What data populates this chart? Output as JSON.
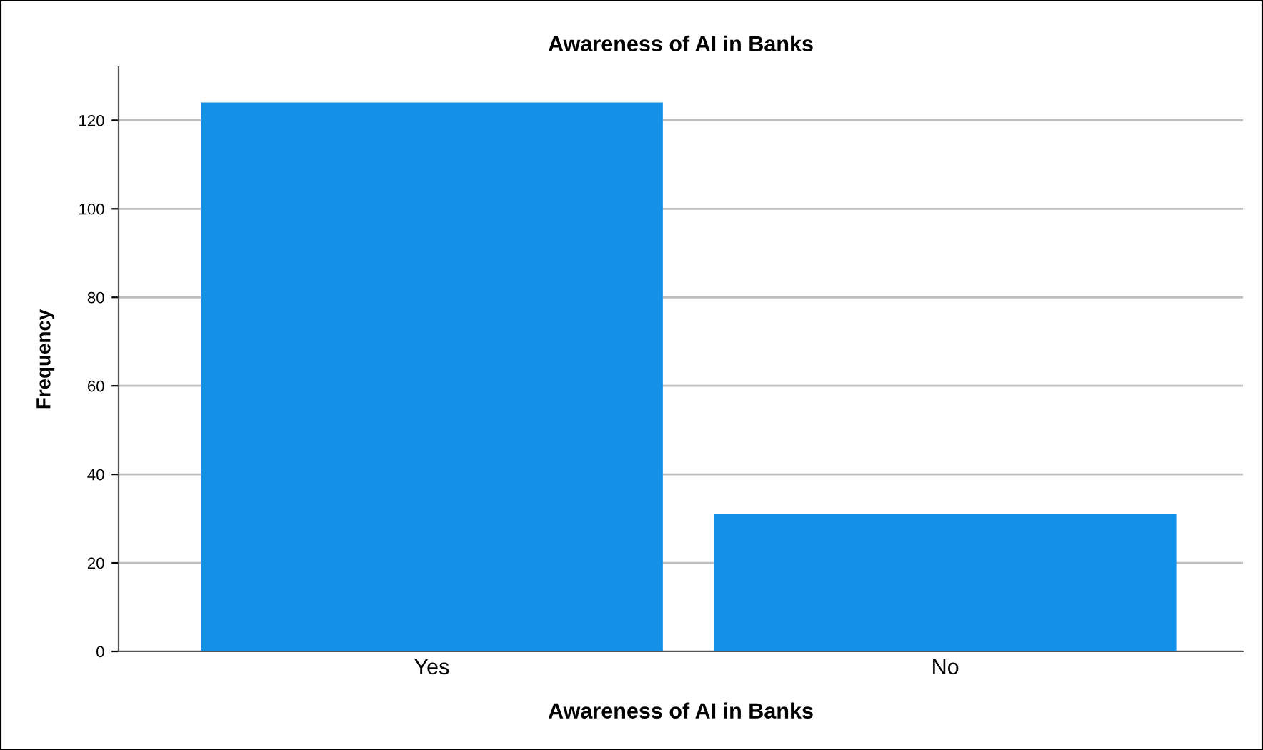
{
  "chart_data": {
    "type": "bar",
    "title": "Awareness of AI in Banks",
    "xlabel": "Awareness of AI in Banks",
    "ylabel": "Frequency",
    "categories": [
      "Yes",
      "No"
    ],
    "series": [
      {
        "color": "#1490e6",
        "values": [
          124,
          31
        ]
      }
    ],
    "ylim": [
      0,
      132
    ],
    "yticks": [
      0,
      20,
      40,
      60,
      80,
      100,
      120
    ],
    "grid": "y"
  }
}
